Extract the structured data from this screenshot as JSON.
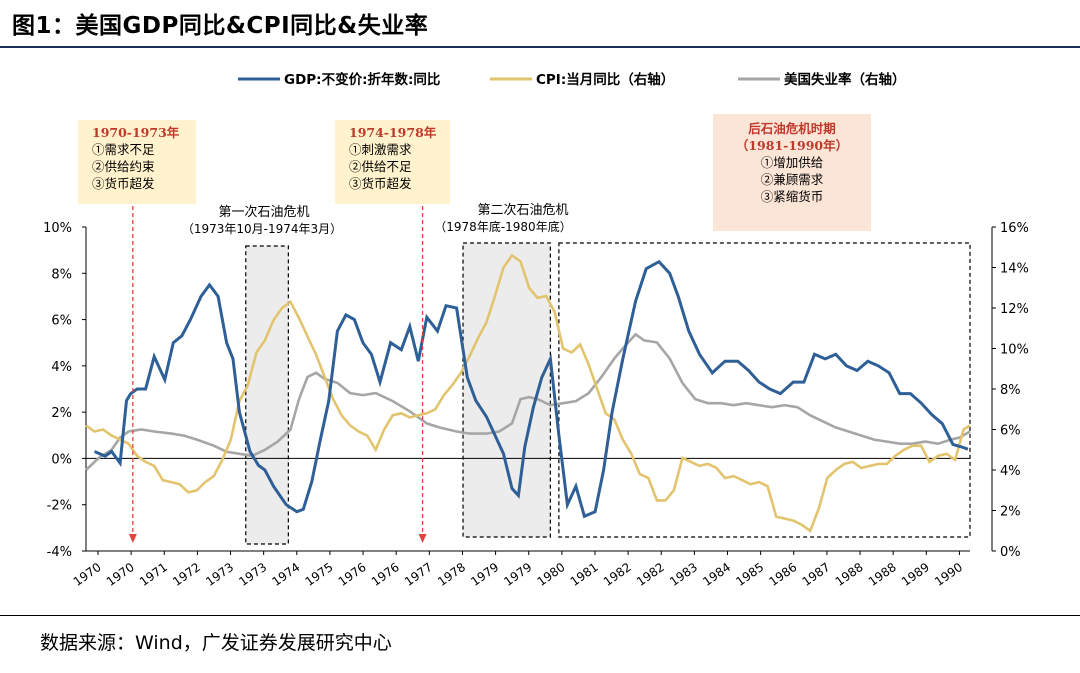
{
  "header": {
    "title": "图1：美国GDP同比&CPI同比&失业率"
  },
  "footer": {
    "source": "数据来源：Wind，广发证券发展研究中心"
  },
  "colors": {
    "gdp": "#2e5f96",
    "cpi": "#e3c46e",
    "unemp": "#a6a6a6",
    "note_bg": "#fff2cc",
    "note_bg_post": "#fbe5d6",
    "note_title": "#c0392b",
    "arrow": "#e8413c",
    "shade": "#ececec"
  },
  "annotations": {
    "box1": {
      "title": "1970-1973年",
      "lines": [
        "①需求不足",
        "②供给约束",
        "③货币超发"
      ]
    },
    "box2": {
      "title": "1974-1978年",
      "lines": [
        "①刺激需求",
        "②供给不足",
        "③货币超发"
      ]
    },
    "box3": {
      "title": "后石油危机时期",
      "title2": "（1981-1990年）",
      "lines": [
        "①增加供给",
        "②兼顾需求",
        "③紧缩货币"
      ]
    },
    "crisis1": {
      "label": "第一次石油危机",
      "dates": "（1973年10月-1974年3月）"
    },
    "crisis2": {
      "label": "第二次石油危机",
      "dates": "（1978年底-1980年底）"
    }
  },
  "chart_data": {
    "type": "line",
    "title": "美国GDP同比&CPI同比&失业率",
    "legend": [
      "GDP:不变价:折年数:同比",
      "CPI:当月同比（右轴）",
      "美国失业率（右轴）"
    ],
    "legend_position": "top",
    "x_tick_labels": [
      "1970",
      "1970",
      "1971",
      "1972",
      "1973",
      "1973",
      "1974",
      "1975",
      "1976",
      "1976",
      "1977",
      "1978",
      "1979",
      "1979",
      "1980",
      "1981",
      "1982",
      "1982",
      "1983",
      "1984",
      "1985",
      "1986",
      "1987",
      "1988",
      "1988",
      "1989",
      "1990"
    ],
    "x_range": [
      1970.0,
      1990.75
    ],
    "y_left": {
      "ticks": [
        "10%",
        "8%",
        "6%",
        "4%",
        "2%",
        "0%",
        "-2%",
        "-4%"
      ],
      "range": [
        -4,
        10
      ]
    },
    "y_right": {
      "ticks": [
        "16%",
        "14%",
        "12%",
        "10%",
        "8%",
        "6%",
        "4%",
        "2%",
        "0%"
      ],
      "range": [
        0,
        16
      ]
    },
    "series": [
      {
        "name": "GDP:不变价:折年数:同比",
        "axis": "left",
        "x": [
          1970.2,
          1970.45,
          1970.6,
          1970.8,
          1970.95,
          1971.05,
          1971.2,
          1971.4,
          1971.6,
          1971.85,
          1972.05,
          1972.25,
          1972.45,
          1972.7,
          1972.9,
          1973.1,
          1973.3,
          1973.45,
          1973.6,
          1973.85,
          1974.05,
          1974.2,
          1974.4,
          1974.7,
          1974.95,
          1975.1,
          1975.3,
          1975.5,
          1975.7,
          1975.9,
          1976.1,
          1976.3,
          1976.5,
          1976.7,
          1976.9,
          1977.15,
          1977.4,
          1977.6,
          1977.8,
          1978.0,
          1978.25,
          1978.45,
          1978.7,
          1978.95,
          1979.15,
          1979.4,
          1979.6,
          1979.8,
          1980.0,
          1980.15,
          1980.3,
          1980.5,
          1980.7,
          1980.9,
          1981.1,
          1981.3,
          1981.5,
          1981.7,
          1981.95,
          1982.15,
          1982.35,
          1982.6,
          1982.9,
          1983.15,
          1983.45,
          1983.7,
          1983.9,
          1984.15,
          1984.4,
          1984.7,
          1985.0,
          1985.3,
          1985.55,
          1985.8,
          1986.05,
          1986.3,
          1986.6,
          1986.85,
          1987.1,
          1987.35,
          1987.6,
          1987.85,
          1988.1,
          1988.35,
          1988.6,
          1988.85,
          1989.1,
          1989.35,
          1989.6,
          1989.85,
          1990.1,
          1990.35,
          1990.55,
          1990.7
        ],
        "y": [
          0.3,
          0.1,
          0.3,
          -0.2,
          2.5,
          2.8,
          3.0,
          3.0,
          4.4,
          3.4,
          5.0,
          5.3,
          6.0,
          7.0,
          7.5,
          7.0,
          5.0,
          4.3,
          2.0,
          0.3,
          -0.3,
          -0.5,
          -1.2,
          -2.0,
          -2.3,
          -2.2,
          -1.0,
          0.8,
          2.5,
          5.5,
          6.2,
          6.0,
          5.0,
          4.5,
          3.3,
          5.0,
          4.7,
          5.7,
          4.2,
          6.1,
          5.5,
          6.6,
          6.5,
          3.5,
          2.5,
          1.8,
          1.0,
          0.2,
          -1.3,
          -1.6,
          0.5,
          2.2,
          3.5,
          4.3,
          1.0,
          -2.0,
          -1.2,
          -2.5,
          -2.3,
          -0.5,
          2.0,
          4.3,
          6.8,
          8.2,
          8.5,
          8.0,
          7.0,
          5.5,
          4.5,
          3.7,
          4.2,
          4.2,
          3.8,
          3.3,
          3.0,
          2.8,
          3.3,
          3.3,
          4.5,
          4.3,
          4.5,
          4.0,
          3.8,
          4.2,
          4.0,
          3.7,
          2.8,
          2.8,
          2.4,
          1.9,
          1.5,
          0.6,
          0.5,
          0.4
        ]
      },
      {
        "name": "CPI:当月同比（右轴）",
        "axis": "right",
        "x": [
          1970.0,
          1970.2,
          1970.4,
          1970.6,
          1970.8,
          1971.0,
          1971.2,
          1971.4,
          1971.6,
          1971.8,
          1972.0,
          1972.2,
          1972.4,
          1972.6,
          1972.8,
          1973.0,
          1973.2,
          1973.4,
          1973.6,
          1973.8,
          1974.0,
          1974.2,
          1974.4,
          1974.6,
          1974.8,
          1975.0,
          1975.2,
          1975.4,
          1975.6,
          1975.8,
          1976.0,
          1976.2,
          1976.4,
          1976.6,
          1976.8,
          1977.0,
          1977.2,
          1977.4,
          1977.6,
          1977.8,
          1978.0,
          1978.2,
          1978.4,
          1978.6,
          1978.8,
          1979.0,
          1979.2,
          1979.4,
          1979.6,
          1979.8,
          1980.0,
          1980.2,
          1980.4,
          1980.6,
          1980.8,
          1981.0,
          1981.2,
          1981.4,
          1981.6,
          1981.8,
          1982.0,
          1982.2,
          1982.4,
          1982.6,
          1982.8,
          1983.0,
          1983.2,
          1983.4,
          1983.6,
          1983.8,
          1984.0,
          1984.2,
          1984.4,
          1984.6,
          1984.8,
          1985.0,
          1985.2,
          1985.4,
          1985.6,
          1985.8,
          1986.0,
          1986.2,
          1986.4,
          1986.6,
          1986.8,
          1987.0,
          1987.2,
          1987.4,
          1987.6,
          1987.8,
          1988.0,
          1988.2,
          1988.4,
          1988.6,
          1988.8,
          1989.0,
          1989.2,
          1989.4,
          1989.6,
          1989.8,
          1990.0,
          1990.2,
          1990.4,
          1990.6,
          1990.75
        ],
        "y": [
          6.2,
          5.9,
          6.0,
          5.7,
          5.5,
          5.3,
          4.7,
          4.4,
          4.2,
          3.5,
          3.4,
          3.3,
          2.9,
          3.0,
          3.4,
          3.7,
          4.5,
          5.5,
          7.4,
          8.2,
          9.8,
          10.4,
          11.4,
          12.0,
          12.3,
          11.5,
          10.6,
          9.7,
          8.6,
          7.5,
          6.7,
          6.2,
          5.9,
          5.7,
          5.0,
          6.0,
          6.7,
          6.8,
          6.6,
          6.7,
          6.8,
          7.0,
          7.7,
          8.2,
          8.8,
          9.6,
          10.5,
          11.3,
          12.6,
          14.0,
          14.6,
          14.3,
          13.0,
          12.5,
          12.6,
          11.8,
          10.0,
          9.8,
          10.2,
          9.2,
          8.0,
          6.8,
          6.5,
          5.5,
          4.8,
          3.8,
          3.6,
          2.5,
          2.5,
          3.0,
          4.6,
          4.4,
          4.2,
          4.3,
          4.1,
          3.6,
          3.7,
          3.5,
          3.3,
          3.4,
          3.2,
          1.7,
          1.6,
          1.5,
          1.3,
          1.0,
          2.1,
          3.6,
          4.0,
          4.3,
          4.4,
          4.1,
          4.2,
          4.3,
          4.3,
          4.7,
          5.0,
          5.2,
          5.2,
          4.4,
          4.7,
          4.8,
          4.5,
          6.0,
          6.2
        ]
      },
      {
        "name": "美国失业率（右轴）",
        "axis": "right",
        "x": [
          1970.0,
          1970.3,
          1970.6,
          1970.8,
          1971.0,
          1971.3,
          1971.6,
          1972.0,
          1972.3,
          1972.6,
          1973.0,
          1973.3,
          1973.6,
          1973.9,
          1974.2,
          1974.5,
          1974.8,
          1975.0,
          1975.2,
          1975.4,
          1975.6,
          1975.9,
          1976.2,
          1976.5,
          1976.8,
          1977.2,
          1977.6,
          1978.0,
          1978.3,
          1978.7,
          1979.0,
          1979.4,
          1979.7,
          1980.0,
          1980.2,
          1980.4,
          1980.6,
          1980.9,
          1981.2,
          1981.5,
          1981.8,
          1982.1,
          1982.4,
          1982.6,
          1982.9,
          1983.1,
          1983.4,
          1983.7,
          1984.0,
          1984.3,
          1984.6,
          1984.9,
          1985.2,
          1985.5,
          1985.8,
          1986.1,
          1986.4,
          1986.7,
          1987.0,
          1987.3,
          1987.6,
          1987.9,
          1988.2,
          1988.5,
          1988.8,
          1989.1,
          1989.4,
          1989.7,
          1990.0,
          1990.3,
          1990.5,
          1990.75
        ],
        "y": [
          4.0,
          4.6,
          5.0,
          5.6,
          5.9,
          6.0,
          5.9,
          5.8,
          5.7,
          5.5,
          5.2,
          4.9,
          4.8,
          4.7,
          5.0,
          5.4,
          6.0,
          7.5,
          8.6,
          8.8,
          8.5,
          8.3,
          7.8,
          7.7,
          7.8,
          7.4,
          6.9,
          6.3,
          6.1,
          5.9,
          5.8,
          5.8,
          5.9,
          6.3,
          7.5,
          7.6,
          7.5,
          7.2,
          7.3,
          7.4,
          7.8,
          8.6,
          9.5,
          10.0,
          10.7,
          10.4,
          10.3,
          9.5,
          8.3,
          7.5,
          7.3,
          7.3,
          7.2,
          7.3,
          7.2,
          7.1,
          7.2,
          7.1,
          6.7,
          6.4,
          6.1,
          5.9,
          5.7,
          5.5,
          5.4,
          5.3,
          5.3,
          5.4,
          5.3,
          5.5,
          5.6,
          5.9
        ]
      }
    ]
  }
}
